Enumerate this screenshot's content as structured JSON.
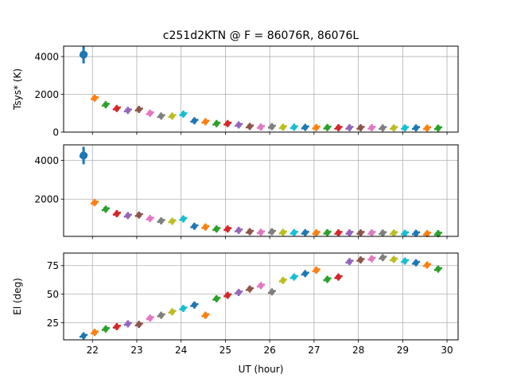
{
  "chart_data": {
    "type": "scatter",
    "title": "c251d2KTN @ F = 86076R, 86076L",
    "xlabel": "UT (hour)",
    "xlim": [
      21.35,
      30.25
    ],
    "xticks": [
      22,
      23,
      24,
      25,
      26,
      27,
      28,
      29,
      30
    ],
    "xtick_labels": [
      "22",
      "23",
      "24",
      "25",
      "26",
      "27",
      "28",
      "29",
      "30"
    ],
    "colors": [
      "#1f77b4",
      "#ff7f0e",
      "#2ca02c",
      "#d62728",
      "#9467bd",
      "#8c564b",
      "#e377c2",
      "#7f7f7f",
      "#bcbd22",
      "#17becf"
    ],
    "x": [
      21.8,
      22.05,
      22.3,
      22.55,
      22.8,
      23.05,
      23.3,
      23.55,
      23.8,
      24.05,
      24.3,
      24.55,
      24.8,
      25.05,
      25.3,
      25.55,
      25.8,
      26.05,
      26.3,
      26.55,
      26.8,
      27.05,
      27.3,
      27.55,
      27.8,
      28.05,
      28.3,
      28.55,
      28.8,
      29.05,
      29.3,
      29.55,
      29.8
    ],
    "panels": [
      {
        "ylabel": "Tsys* (K)",
        "ylim": [
          0,
          4550
        ],
        "yticks": [
          0,
          2000,
          4000
        ],
        "ytick_labels": [
          "0",
          "2000",
          "4000"
        ],
        "values": [
          4100,
          1800,
          1450,
          1250,
          1150,
          1200,
          1000,
          850,
          850,
          950,
          600,
          550,
          450,
          450,
          380,
          300,
          270,
          290,
          260,
          260,
          250,
          240,
          240,
          230,
          230,
          230,
          230,
          220,
          220,
          220,
          220,
          210,
          210
        ]
      },
      {
        "ylabel": "",
        "ylim": [
          80,
          4800
        ],
        "yticks": [
          2000,
          4000
        ],
        "ytick_labels": [
          "2000",
          "4000"
        ],
        "values": [
          4250,
          1820,
          1480,
          1250,
          1150,
          1180,
          1000,
          880,
          860,
          980,
          600,
          560,
          460,
          460,
          390,
          320,
          290,
          320,
          280,
          270,
          270,
          260,
          270,
          260,
          260,
          260,
          260,
          250,
          250,
          240,
          240,
          220,
          220
        ]
      },
      {
        "ylabel": "El (deg)",
        "ylim": [
          10,
          86
        ],
        "yticks": [
          25,
          50,
          75
        ],
        "ytick_labels": [
          "25",
          "50",
          "75"
        ],
        "values": [
          13.5,
          16.5,
          19.5,
          21.5,
          24,
          23.5,
          29,
          31.5,
          34.5,
          37.5,
          40.5,
          31.5,
          46,
          49,
          51.5,
          54.5,
          57.5,
          52,
          62,
          65,
          68,
          71,
          63,
          65,
          78.5,
          80,
          81,
          82,
          80.5,
          79,
          77.5,
          75.5,
          72
        ]
      }
    ]
  }
}
